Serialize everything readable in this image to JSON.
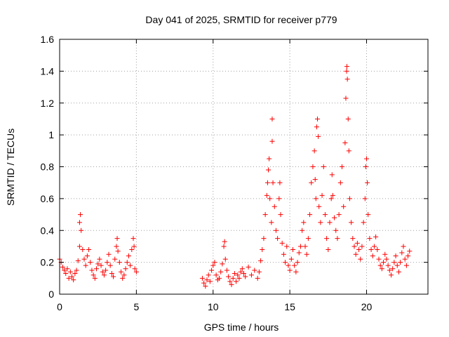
{
  "chart_data": {
    "type": "scatter",
    "title": "Day 041 of 2025, SRMTID for receiver p779",
    "xlabel": "GPS time / hours",
    "ylabel": "SRMTID / TECUs",
    "xlim": [
      0,
      24
    ],
    "ylim": [
      0,
      1.6
    ],
    "xticks": [
      0,
      5,
      10,
      15,
      20
    ],
    "yticks": [
      0,
      0.2,
      0.4,
      0.6,
      0.8,
      1,
      1.2,
      1.4,
      1.6
    ],
    "xtick_labels": [
      "0",
      "5",
      "10",
      "15",
      "20"
    ],
    "ytick_labels": [
      "0",
      "0.2",
      "0.4",
      "0.6",
      "0.8",
      "1",
      "1.2",
      "1.4",
      "1.6"
    ],
    "grid": true,
    "marker": "plus",
    "color": "#ff0000",
    "series": [
      {
        "name": "SRMTID",
        "points": [
          [
            0.0,
            0.22
          ],
          [
            0.1,
            0.2
          ],
          [
            0.2,
            0.17
          ],
          [
            0.3,
            0.15
          ],
          [
            0.4,
            0.13
          ],
          [
            0.5,
            0.16
          ],
          [
            0.6,
            0.1
          ],
          [
            0.7,
            0.14
          ],
          [
            0.8,
            0.11
          ],
          [
            0.9,
            0.09
          ],
          [
            1.0,
            0.13
          ],
          [
            1.1,
            0.15
          ],
          [
            1.2,
            0.21
          ],
          [
            1.3,
            0.3
          ],
          [
            1.3,
            0.45
          ],
          [
            1.35,
            0.5
          ],
          [
            1.4,
            0.4
          ],
          [
            1.5,
            0.28
          ],
          [
            1.6,
            0.22
          ],
          [
            1.7,
            0.18
          ],
          [
            1.8,
            0.24
          ],
          [
            1.9,
            0.28
          ],
          [
            2.0,
            0.2
          ],
          [
            2.1,
            0.15
          ],
          [
            2.2,
            0.12
          ],
          [
            2.3,
            0.1
          ],
          [
            2.4,
            0.16
          ],
          [
            2.5,
            0.19
          ],
          [
            2.6,
            0.22
          ],
          [
            2.7,
            0.18
          ],
          [
            2.8,
            0.14
          ],
          [
            2.9,
            0.12
          ],
          [
            3.0,
            0.15
          ],
          [
            3.1,
            0.2
          ],
          [
            3.2,
            0.25
          ],
          [
            3.3,
            0.18
          ],
          [
            3.4,
            0.13
          ],
          [
            3.5,
            0.11
          ],
          [
            3.6,
            0.22
          ],
          [
            3.7,
            0.3
          ],
          [
            3.75,
            0.35
          ],
          [
            3.8,
            0.27
          ],
          [
            3.9,
            0.2
          ],
          [
            4.0,
            0.14
          ],
          [
            4.1,
            0.1
          ],
          [
            4.2,
            0.12
          ],
          [
            4.3,
            0.16
          ],
          [
            4.4,
            0.2
          ],
          [
            4.5,
            0.24
          ],
          [
            4.6,
            0.18
          ],
          [
            4.7,
            0.28
          ],
          [
            4.8,
            0.35
          ],
          [
            4.85,
            0.3
          ],
          [
            4.9,
            0.16
          ],
          [
            5.0,
            0.14
          ],
          [
            9.3,
            0.1
          ],
          [
            9.4,
            0.07
          ],
          [
            9.5,
            0.05
          ],
          [
            9.6,
            0.09
          ],
          [
            9.7,
            0.12
          ],
          [
            9.8,
            0.08
          ],
          [
            9.9,
            0.15
          ],
          [
            10.0,
            0.18
          ],
          [
            10.1,
            0.2
          ],
          [
            10.2,
            0.12
          ],
          [
            10.3,
            0.09
          ],
          [
            10.4,
            0.1
          ],
          [
            10.5,
            0.14
          ],
          [
            10.6,
            0.19
          ],
          [
            10.7,
            0.3
          ],
          [
            10.75,
            0.33
          ],
          [
            10.8,
            0.22
          ],
          [
            10.9,
            0.15
          ],
          [
            11.0,
            0.11
          ],
          [
            11.1,
            0.08
          ],
          [
            11.2,
            0.06
          ],
          [
            11.3,
            0.1
          ],
          [
            11.4,
            0.13
          ],
          [
            11.5,
            0.08
          ],
          [
            11.6,
            0.12
          ],
          [
            11.7,
            0.1
          ],
          [
            11.8,
            0.14
          ],
          [
            11.9,
            0.16
          ],
          [
            12.0,
            0.13
          ],
          [
            12.1,
            0.11
          ],
          [
            12.3,
            0.17
          ],
          [
            12.5,
            0.12
          ],
          [
            12.7,
            0.15
          ],
          [
            12.9,
            0.1
          ],
          [
            13.0,
            0.14
          ],
          [
            13.1,
            0.21
          ],
          [
            13.2,
            0.28
          ],
          [
            13.3,
            0.35
          ],
          [
            13.4,
            0.5
          ],
          [
            13.5,
            0.62
          ],
          [
            13.55,
            0.7
          ],
          [
            13.6,
            0.78
          ],
          [
            13.65,
            0.85
          ],
          [
            13.7,
            0.6
          ],
          [
            13.8,
            0.45
          ],
          [
            13.85,
            0.96
          ],
          [
            13.85,
            1.1
          ],
          [
            13.9,
            0.7
          ],
          [
            14.0,
            0.55
          ],
          [
            14.1,
            0.4
          ],
          [
            14.2,
            0.35
          ],
          [
            14.3,
            0.6
          ],
          [
            14.35,
            0.7
          ],
          [
            14.4,
            0.5
          ],
          [
            14.5,
            0.32
          ],
          [
            14.6,
            0.25
          ],
          [
            14.7,
            0.2
          ],
          [
            14.8,
            0.3
          ],
          [
            14.9,
            0.18
          ],
          [
            15.0,
            0.15
          ],
          [
            15.1,
            0.22
          ],
          [
            15.2,
            0.28
          ],
          [
            15.3,
            0.18
          ],
          [
            15.4,
            0.14
          ],
          [
            15.5,
            0.2
          ],
          [
            15.6,
            0.26
          ],
          [
            15.7,
            0.3
          ],
          [
            15.8,
            0.4
          ],
          [
            15.9,
            0.45
          ],
          [
            16.0,
            0.3
          ],
          [
            16.1,
            0.25
          ],
          [
            16.2,
            0.35
          ],
          [
            16.3,
            0.5
          ],
          [
            16.4,
            0.7
          ],
          [
            16.5,
            0.8
          ],
          [
            16.6,
            0.9
          ],
          [
            16.65,
            0.72
          ],
          [
            16.7,
            0.6
          ],
          [
            16.75,
            1.05
          ],
          [
            16.8,
            1.1
          ],
          [
            16.85,
            0.99
          ],
          [
            16.9,
            0.55
          ],
          [
            17.0,
            0.45
          ],
          [
            17.1,
            0.62
          ],
          [
            17.2,
            0.8
          ],
          [
            17.3,
            0.5
          ],
          [
            17.4,
            0.35
          ],
          [
            17.5,
            0.28
          ],
          [
            17.6,
            0.45
          ],
          [
            17.7,
            0.6
          ],
          [
            17.75,
            0.75
          ],
          [
            17.8,
            0.62
          ],
          [
            17.9,
            0.48
          ],
          [
            18.0,
            0.4
          ],
          [
            18.1,
            0.35
          ],
          [
            18.2,
            0.5
          ],
          [
            18.3,
            0.7
          ],
          [
            18.4,
            0.8
          ],
          [
            18.5,
            0.55
          ],
          [
            18.6,
            0.95
          ],
          [
            18.65,
            1.23
          ],
          [
            18.7,
            1.4
          ],
          [
            18.72,
            1.43
          ],
          [
            18.75,
            1.35
          ],
          [
            18.8,
            1.1
          ],
          [
            18.85,
            0.9
          ],
          [
            18.9,
            0.6
          ],
          [
            19.0,
            0.45
          ],
          [
            19.1,
            0.35
          ],
          [
            19.2,
            0.3
          ],
          [
            19.3,
            0.25
          ],
          [
            19.4,
            0.32
          ],
          [
            19.5,
            0.28
          ],
          [
            19.6,
            0.22
          ],
          [
            19.7,
            0.3
          ],
          [
            19.8,
            0.45
          ],
          [
            19.9,
            0.6
          ],
          [
            19.95,
            0.8
          ],
          [
            20.0,
            0.85
          ],
          [
            20.05,
            0.7
          ],
          [
            20.1,
            0.5
          ],
          [
            20.2,
            0.35
          ],
          [
            20.3,
            0.28
          ],
          [
            20.4,
            0.24
          ],
          [
            20.5,
            0.3
          ],
          [
            20.6,
            0.36
          ],
          [
            20.7,
            0.28
          ],
          [
            20.8,
            0.22
          ],
          [
            20.9,
            0.18
          ],
          [
            21.0,
            0.16
          ],
          [
            21.1,
            0.2
          ],
          [
            21.2,
            0.25
          ],
          [
            21.3,
            0.22
          ],
          [
            21.4,
            0.18
          ],
          [
            21.5,
            0.15
          ],
          [
            21.6,
            0.12
          ],
          [
            21.7,
            0.16
          ],
          [
            21.8,
            0.2
          ],
          [
            21.9,
            0.24
          ],
          [
            22.0,
            0.18
          ],
          [
            22.1,
            0.14
          ],
          [
            22.2,
            0.2
          ],
          [
            22.3,
            0.26
          ],
          [
            22.4,
            0.3
          ],
          [
            22.5,
            0.22
          ],
          [
            22.6,
            0.18
          ],
          [
            22.7,
            0.24
          ],
          [
            22.8,
            0.27
          ]
        ]
      }
    ]
  }
}
